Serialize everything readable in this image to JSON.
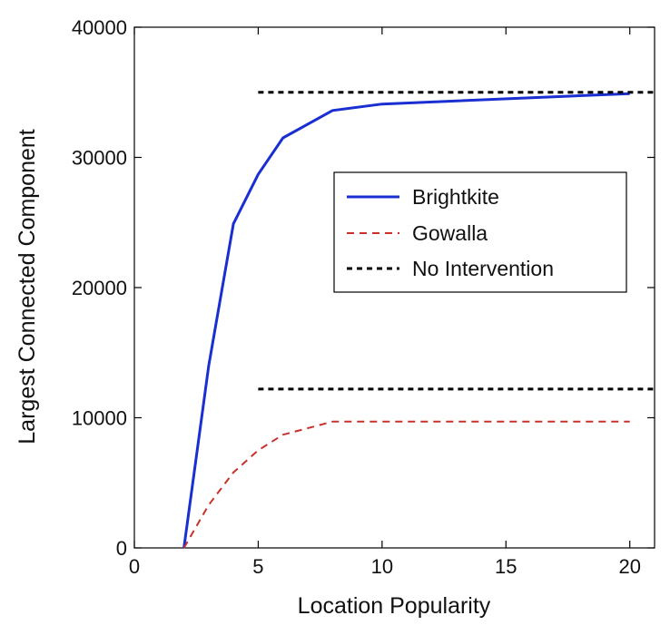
{
  "chart_data": {
    "type": "line",
    "title": "",
    "xlabel": "Location Popularity",
    "ylabel": "Largest Connected Component",
    "xlim": [
      0,
      21
    ],
    "ylim": [
      0,
      40000
    ],
    "xticks": [
      0,
      5,
      10,
      15,
      20
    ],
    "xtick_labels": [
      "0",
      "5",
      "10",
      "15",
      "20"
    ],
    "yticks": [
      0,
      10000,
      20000,
      30000,
      40000
    ],
    "ytick_labels": [
      "0",
      "10000",
      "20000",
      "30000",
      "40000"
    ],
    "grid": false,
    "legend_position": "center-right",
    "series": [
      {
        "name": "Brightkite",
        "style": "solid",
        "color": "#1a2fd1",
        "x": [
          2,
          3,
          4,
          5,
          6,
          8,
          10,
          20
        ],
        "y": [
          0,
          14000,
          24900,
          28700,
          31500,
          33600,
          34100,
          34900
        ]
      },
      {
        "name": "Gowalla",
        "style": "dashed",
        "color": "#c9302c",
        "x": [
          2,
          3,
          4,
          5,
          6,
          8,
          10,
          20
        ],
        "y": [
          0,
          3300,
          5800,
          7500,
          8700,
          9700,
          9700,
          9700
        ]
      },
      {
        "name": "No Intervention",
        "style": "dotted",
        "color": "#000000",
        "x": [
          5,
          21
        ],
        "y": [
          35000,
          35000
        ]
      },
      {
        "name": "",
        "style": "dotted",
        "color": "#000000",
        "x": [
          5,
          21
        ],
        "y": [
          12200,
          12200
        ]
      }
    ]
  }
}
